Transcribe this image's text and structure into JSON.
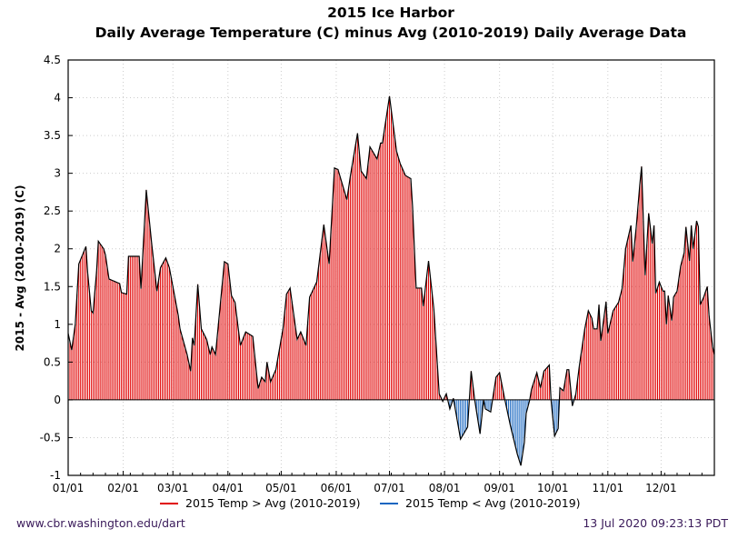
{
  "chart_data": {
    "type": "bar",
    "title": "2015 Ice Harbor",
    "subtitle": "Daily Average Temperature (C) minus Avg (2010-2019) Daily Average Data",
    "xlabel": "",
    "ylabel": "2015 - Avg (2010-2019) (C)",
    "year": 2015,
    "ylim": [
      -1,
      4.5
    ],
    "yticks": [
      "-1",
      "-0.5",
      "0",
      "0.5",
      "1",
      "1.5",
      "2",
      "2.5",
      "3",
      "3.5",
      "4",
      "4.5"
    ],
    "xticks": [
      "01/01",
      "02/01",
      "03/01",
      "04/01",
      "05/01",
      "06/01",
      "07/01",
      "08/01",
      "09/01",
      "10/01",
      "11/01",
      "12/01"
    ],
    "grid": true,
    "legend_position": "bottom",
    "series": [
      {
        "name": "2015 Temp > Avg (2010-2019)",
        "color": "#e00000"
      },
      {
        "name": "2015 Temp < Avg (2010-2019)",
        "color": "#1565c0"
      }
    ],
    "points": [
      [
        "01/01",
        0.88
      ],
      [
        "01/03",
        0.66
      ],
      [
        "01/05",
        1.0
      ],
      [
        "01/07",
        1.8
      ],
      [
        "01/11",
        2.03
      ],
      [
        "01/12",
        1.68
      ],
      [
        "01/14",
        1.18
      ],
      [
        "01/15",
        1.15
      ],
      [
        "01/17",
        1.7
      ],
      [
        "01/18",
        2.1
      ],
      [
        "01/21",
        2.0
      ],
      [
        "01/22",
        1.92
      ],
      [
        "01/24",
        1.6
      ],
      [
        "01/30",
        1.54
      ],
      [
        "01/31",
        1.42
      ],
      [
        "02/03",
        1.4
      ],
      [
        "02/04",
        1.9
      ],
      [
        "02/10",
        1.9
      ],
      [
        "02/11",
        1.47
      ],
      [
        "02/14",
        2.78
      ],
      [
        "02/17",
        2.08
      ],
      [
        "02/20",
        1.44
      ],
      [
        "02/22",
        1.75
      ],
      [
        "02/25",
        1.88
      ],
      [
        "02/27",
        1.75
      ],
      [
        "03/04",
        1.12
      ],
      [
        "03/05",
        0.94
      ],
      [
        "03/09",
        0.6
      ],
      [
        "03/11",
        0.38
      ],
      [
        "03/12",
        0.82
      ],
      [
        "03/13",
        0.72
      ],
      [
        "03/15",
        1.53
      ],
      [
        "03/17",
        0.94
      ],
      [
        "03/20",
        0.8
      ],
      [
        "03/22",
        0.6
      ],
      [
        "03/23",
        0.7
      ],
      [
        "03/25",
        0.6
      ],
      [
        "03/30",
        1.83
      ],
      [
        "04/01",
        1.8
      ],
      [
        "04/03",
        1.38
      ],
      [
        "04/05",
        1.29
      ],
      [
        "04/08",
        0.72
      ],
      [
        "04/11",
        0.9
      ],
      [
        "04/15",
        0.84
      ],
      [
        "04/18",
        0.15
      ],
      [
        "04/20",
        0.3
      ],
      [
        "04/22",
        0.24
      ],
      [
        "04/23",
        0.5
      ],
      [
        "04/25",
        0.24
      ],
      [
        "04/28",
        0.4
      ],
      [
        "05/02",
        0.94
      ],
      [
        "05/04",
        1.4
      ],
      [
        "05/06",
        1.48
      ],
      [
        "05/10",
        0.8
      ],
      [
        "05/12",
        0.9
      ],
      [
        "05/15",
        0.72
      ],
      [
        "05/17",
        1.36
      ],
      [
        "05/21",
        1.56
      ],
      [
        "05/25",
        2.32
      ],
      [
        "05/28",
        1.8
      ],
      [
        "05/31",
        3.07
      ],
      [
        "06/02",
        3.05
      ],
      [
        "06/07",
        2.65
      ],
      [
        "06/09",
        2.97
      ],
      [
        "06/13",
        3.53
      ],
      [
        "06/15",
        3.03
      ],
      [
        "06/18",
        2.93
      ],
      [
        "06/20",
        3.35
      ],
      [
        "06/24",
        3.19
      ],
      [
        "06/26",
        3.4
      ],
      [
        "06/27",
        3.4
      ],
      [
        "07/01",
        4.02
      ],
      [
        "07/05",
        3.29
      ],
      [
        "07/07",
        3.13
      ],
      [
        "07/10",
        2.97
      ],
      [
        "07/13",
        2.93
      ],
      [
        "07/14",
        2.56
      ],
      [
        "07/16",
        1.48
      ],
      [
        "07/19",
        1.48
      ],
      [
        "07/20",
        1.24
      ],
      [
        "07/23",
        1.84
      ],
      [
        "07/26",
        1.2
      ],
      [
        "07/29",
        0.08
      ],
      [
        "07/31",
        -0.02
      ],
      [
        "08/02",
        0.08
      ],
      [
        "08/04",
        -0.12
      ],
      [
        "08/06",
        0.02
      ],
      [
        "08/10",
        -0.52
      ],
      [
        "08/14",
        -0.36
      ],
      [
        "08/16",
        0.38
      ],
      [
        "08/18",
        0.0
      ],
      [
        "08/21",
        -0.45
      ],
      [
        "08/23",
        0.0
      ],
      [
        "08/24",
        -0.12
      ],
      [
        "08/27",
        -0.16
      ],
      [
        "08/30",
        0.3
      ],
      [
        "09/01",
        0.36
      ],
      [
        "09/04",
        0.0
      ],
      [
        "09/07",
        -0.33
      ],
      [
        "09/11",
        -0.72
      ],
      [
        "09/13",
        -0.87
      ],
      [
        "09/15",
        -0.56
      ],
      [
        "09/16",
        -0.18
      ],
      [
        "09/18",
        0.0
      ],
      [
        "09/19",
        0.14
      ],
      [
        "09/22",
        0.36
      ],
      [
        "09/24",
        0.16
      ],
      [
        "09/26",
        0.38
      ],
      [
        "09/29",
        0.46
      ],
      [
        "09/30",
        0.0
      ],
      [
        "10/02",
        -0.48
      ],
      [
        "10/04",
        -0.38
      ],
      [
        "10/05",
        0.16
      ],
      [
        "10/07",
        0.12
      ],
      [
        "10/09",
        0.4
      ],
      [
        "10/10",
        0.4
      ],
      [
        "10/12",
        -0.08
      ],
      [
        "10/14",
        0.08
      ],
      [
        "10/16",
        0.46
      ],
      [
        "10/19",
        0.94
      ],
      [
        "10/21",
        1.18
      ],
      [
        "10/23",
        1.08
      ],
      [
        "10/24",
        0.94
      ],
      [
        "10/26",
        0.94
      ],
      [
        "10/27",
        1.26
      ],
      [
        "10/28",
        0.78
      ],
      [
        "10/31",
        1.3
      ],
      [
        "11/01",
        0.88
      ],
      [
        "11/04",
        1.18
      ],
      [
        "11/07",
        1.29
      ],
      [
        "11/09",
        1.47
      ],
      [
        "11/11",
        2.0
      ],
      [
        "11/14",
        2.31
      ],
      [
        "11/15",
        1.83
      ],
      [
        "11/17",
        2.29
      ],
      [
        "11/19",
        2.85
      ],
      [
        "11/20",
        3.09
      ],
      [
        "11/22",
        1.65
      ],
      [
        "11/24",
        2.47
      ],
      [
        "11/26",
        2.07
      ],
      [
        "11/27",
        2.31
      ],
      [
        "11/28",
        1.41
      ],
      [
        "11/30",
        1.56
      ],
      [
        "12/02",
        1.44
      ],
      [
        "12/03",
        1.44
      ],
      [
        "12/04",
        1.0
      ],
      [
        "12/05",
        1.38
      ],
      [
        "12/07",
        1.05
      ],
      [
        "12/08",
        1.36
      ],
      [
        "12/10",
        1.44
      ],
      [
        "12/12",
        1.77
      ],
      [
        "12/14",
        1.95
      ],
      [
        "12/15",
        2.29
      ],
      [
        "12/17",
        1.84
      ],
      [
        "12/18",
        2.31
      ],
      [
        "12/19",
        2.0
      ],
      [
        "12/21",
        2.37
      ],
      [
        "12/22",
        2.29
      ],
      [
        "12/23",
        1.26
      ],
      [
        "12/25",
        1.36
      ],
      [
        "12/27",
        1.5
      ],
      [
        "12/28",
        1.12
      ],
      [
        "12/30",
        0.7
      ],
      [
        "12/31",
        0.6
      ]
    ]
  },
  "footer": {
    "source": "www.cbr.washington.edu/dart",
    "timestamp": "13 Jul 2020 09:23:13 PDT"
  }
}
